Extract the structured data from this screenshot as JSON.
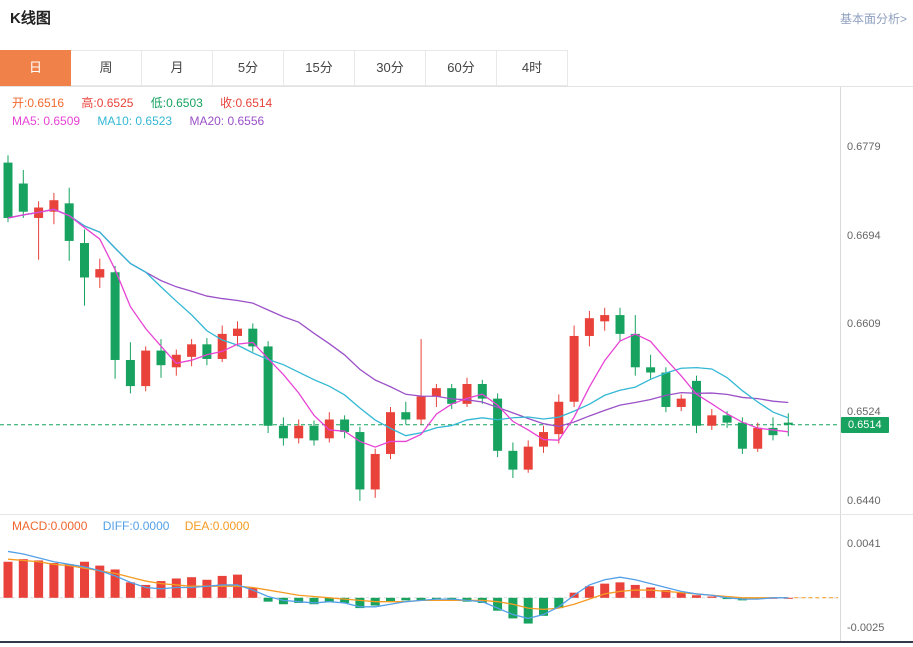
{
  "header": {
    "title": "K线图",
    "link_label": "基本面分析>"
  },
  "tabs": [
    {
      "label": "日",
      "active": true
    },
    {
      "label": "周",
      "active": false
    },
    {
      "label": "月",
      "active": false
    },
    {
      "label": "5分",
      "active": false
    },
    {
      "label": "15分",
      "active": false
    },
    {
      "label": "30分",
      "active": false
    },
    {
      "label": "60分",
      "active": false
    },
    {
      "label": "4时",
      "active": false
    }
  ],
  "info": {
    "open_label": "开:",
    "open_value": "0.6516",
    "high_label": "高:",
    "high_value": "0.6525",
    "low_label": "低:",
    "low_value": "0.6503",
    "close_label": "收:",
    "close_value": "0.6514",
    "ma5_label": "MA5: ",
    "ma5_value": "0.6509",
    "ma10_label": "MA10: ",
    "ma10_value": "0.6523",
    "ma20_label": "MA20: ",
    "ma20_value": "0.6556",
    "macd_label": "MACD:",
    "macd_value": "0.0000",
    "diff_label": "DIFF:",
    "diff_value": "0.0000",
    "dea_label": "DEA:",
    "dea_value": "0.0000"
  },
  "axis": {
    "price_ticks": [
      "0.6779",
      "0.6694",
      "0.6609",
      "0.6524",
      "0.6440"
    ],
    "macd_ticks": [
      "0.0041",
      "-0.0025"
    ],
    "price_tag": "0.6514"
  },
  "colors": {
    "up": "#e8423a",
    "down": "#17a35f",
    "accent": "#f08149",
    "ma5": "#e743d5",
    "ma10": "#33b8d4",
    "ma20": "#9b51c8",
    "diff": "#54a0e8",
    "dea": "#f59b22",
    "open": "#f06a2e",
    "high": "#e8423a",
    "low": "#17a35f",
    "close": "#e8423a",
    "macd_label": "#f0652e",
    "link": "#8fa0c0",
    "price_tag_bg": "#17a35f"
  },
  "chart_data": {
    "type": "candlestick",
    "title": "K线图 (日)",
    "main": {
      "y_axis_ticks": [
        0.6779,
        0.6694,
        0.6609,
        0.6524,
        0.644
      ],
      "current_price": 0.6514,
      "last_ohlc": {
        "open": 0.6516,
        "high": 0.6525,
        "low": 0.6503,
        "close": 0.6514
      },
      "overlays": [
        {
          "name": "MA5",
          "period": 5,
          "display_value": 0.6509
        },
        {
          "name": "MA10",
          "period": 10,
          "display_value": 0.6523
        },
        {
          "name": "MA20",
          "period": 20,
          "display_value": 0.6556
        }
      ],
      "candles_ohlc": [
        [
          0.6765,
          0.6772,
          0.6708,
          0.6712
        ],
        [
          0.6745,
          0.6758,
          0.6712,
          0.6718
        ],
        [
          0.6712,
          0.6728,
          0.6672,
          0.6722
        ],
        [
          0.6718,
          0.6736,
          0.6706,
          0.6729
        ],
        [
          0.6726,
          0.6741,
          0.6671,
          0.669
        ],
        [
          0.6688,
          0.6701,
          0.6628,
          0.6655
        ],
        [
          0.6655,
          0.6673,
          0.6645,
          0.6663
        ],
        [
          0.666,
          0.6666,
          0.6558,
          0.6576
        ],
        [
          0.6576,
          0.6593,
          0.6544,
          0.6551
        ],
        [
          0.6551,
          0.6589,
          0.6546,
          0.6585
        ],
        [
          0.6585,
          0.6596,
          0.6559,
          0.6571
        ],
        [
          0.6569,
          0.6586,
          0.6561,
          0.6581
        ],
        [
          0.6579,
          0.6596,
          0.657,
          0.6591
        ],
        [
          0.6591,
          0.6597,
          0.6571,
          0.6577
        ],
        [
          0.6577,
          0.6609,
          0.6574,
          0.6601
        ],
        [
          0.6599,
          0.6613,
          0.6589,
          0.6606
        ],
        [
          0.6606,
          0.6611,
          0.6584,
          0.6589
        ],
        [
          0.6589,
          0.6594,
          0.6506,
          0.6513
        ],
        [
          0.6513,
          0.6521,
          0.6494,
          0.6501
        ],
        [
          0.6501,
          0.6519,
          0.6496,
          0.6513
        ],
        [
          0.6513,
          0.6518,
          0.6494,
          0.6499
        ],
        [
          0.6501,
          0.6526,
          0.6497,
          0.6519
        ],
        [
          0.6519,
          0.6523,
          0.6501,
          0.6507
        ],
        [
          0.6507,
          0.6512,
          0.6441,
          0.6452
        ],
        [
          0.6452,
          0.6491,
          0.6444,
          0.6486
        ],
        [
          0.6486,
          0.6531,
          0.6481,
          0.6526
        ],
        [
          0.6526,
          0.6536,
          0.6514,
          0.6519
        ],
        [
          0.6519,
          0.6596,
          0.6514,
          0.6541
        ],
        [
          0.6541,
          0.6553,
          0.6531,
          0.6549
        ],
        [
          0.6549,
          0.6553,
          0.6529,
          0.6534
        ],
        [
          0.6534,
          0.6559,
          0.6531,
          0.6553
        ],
        [
          0.6553,
          0.6557,
          0.6534,
          0.6539
        ],
        [
          0.6539,
          0.6544,
          0.6483,
          0.6489
        ],
        [
          0.6489,
          0.6497,
          0.6463,
          0.6471
        ],
        [
          0.6471,
          0.6499,
          0.6468,
          0.6493
        ],
        [
          0.6493,
          0.6513,
          0.6487,
          0.6507
        ],
        [
          0.6505,
          0.6543,
          0.6496,
          0.6536
        ],
        [
          0.6536,
          0.6609,
          0.6531,
          0.6599
        ],
        [
          0.6599,
          0.6623,
          0.6589,
          0.6616
        ],
        [
          0.6613,
          0.6626,
          0.6604,
          0.6619
        ],
        [
          0.6619,
          0.6626,
          0.6594,
          0.6601
        ],
        [
          0.6601,
          0.6619,
          0.6561,
          0.6569
        ],
        [
          0.6569,
          0.6581,
          0.6557,
          0.6564
        ],
        [
          0.6564,
          0.6569,
          0.6526,
          0.6531
        ],
        [
          0.6531,
          0.6543,
          0.6527,
          0.6539
        ],
        [
          0.6556,
          0.6561,
          0.6506,
          0.6513
        ],
        [
          0.6513,
          0.6529,
          0.6509,
          0.6523
        ],
        [
          0.6523,
          0.6527,
          0.6511,
          0.6516
        ],
        [
          0.6516,
          0.6521,
          0.6486,
          0.6491
        ],
        [
          0.6491,
          0.6516,
          0.6488,
          0.6511
        ],
        [
          0.6511,
          0.6521,
          0.6499,
          0.6504
        ],
        [
          0.6516,
          0.6525,
          0.6503,
          0.6514
        ]
      ]
    },
    "macd": {
      "y_axis_ticks": [
        0.0041,
        -0.0025
      ],
      "latest": {
        "macd": 0.0,
        "diff": 0.0,
        "dea": 0.0
      },
      "histogram": [
        0.0028,
        0.003,
        0.0029,
        0.0027,
        0.0026,
        0.0028,
        0.0025,
        0.0022,
        0.0012,
        0.001,
        0.0013,
        0.0015,
        0.0016,
        0.0014,
        0.0017,
        0.0018,
        0.0008,
        -0.0003,
        -0.0005,
        -0.0004,
        -0.0005,
        -0.0003,
        -0.0004,
        -0.0008,
        -0.0006,
        -0.0003,
        -0.0002,
        -0.0002,
        -0.0001,
        -0.0002,
        -0.0003,
        -0.0004,
        -0.001,
        -0.0016,
        -0.002,
        -0.0014,
        -0.0008,
        0.0004,
        0.0009,
        0.0011,
        0.0012,
        0.001,
        0.0008,
        0.0006,
        0.0004,
        0.0002,
        0.0001,
        -0.0001,
        -0.0002,
        -0.0001,
        0.0,
        0.0
      ],
      "diff": [
        0.0036,
        0.0034,
        0.0031,
        0.0028,
        0.0026,
        0.0024,
        0.0021,
        0.0017,
        0.0012,
        0.0008,
        0.0007,
        0.0008,
        0.0008,
        0.0009,
        0.001,
        0.001,
        0.0006,
        0.0001,
        -0.0002,
        -0.0003,
        -0.0004,
        -0.0003,
        -0.0004,
        -0.0007,
        -0.0007,
        -0.0005,
        -0.0003,
        -0.0002,
        -0.0001,
        -0.0001,
        -0.0002,
        -0.0003,
        -0.0008,
        -0.0013,
        -0.0016,
        -0.0013,
        -0.0007,
        0.0002,
        0.001,
        0.0014,
        0.0016,
        0.0014,
        0.0011,
        0.0008,
        0.0005,
        0.0003,
        0.0002,
        0.0,
        -0.0001,
        -0.0001,
        0.0,
        0.0
      ],
      "dea": [
        0.003,
        0.0029,
        0.0028,
        0.0026,
        0.0025,
        0.0023,
        0.0021,
        0.0019,
        0.0016,
        0.0013,
        0.0011,
        0.001,
        0.0009,
        0.0009,
        0.0009,
        0.0009,
        0.0008,
        0.0006,
        0.0004,
        0.0002,
        0.0001,
        0.0,
        -0.0001,
        -0.0002,
        -0.0003,
        -0.0003,
        -0.0003,
        -0.0002,
        -0.0002,
        -0.0002,
        -0.0002,
        -0.0002,
        -0.0003,
        -0.0005,
        -0.0008,
        -0.0009,
        -0.0008,
        -0.0005,
        -0.0001,
        0.0003,
        0.0005,
        0.0006,
        0.0006,
        0.0005,
        0.0004,
        0.0003,
        0.0002,
        0.0001,
        0.0,
        0.0,
        0.0,
        0.0
      ]
    }
  }
}
